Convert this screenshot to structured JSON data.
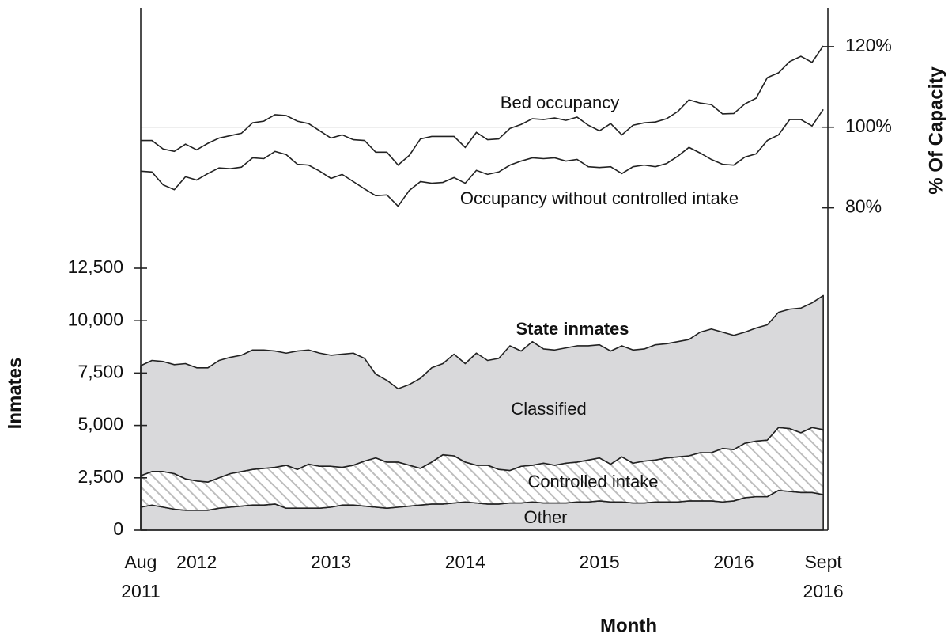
{
  "chart_data": {
    "type": "area",
    "stacked": true,
    "xlabel": "Month",
    "ylabel": "Inmates",
    "y2label": "% Of Capacity",
    "categories": [
      "Aug\n2011",
      null,
      null,
      null,
      null,
      "2012",
      null,
      null,
      null,
      null,
      null,
      null,
      null,
      null,
      null,
      null,
      null,
      "2013",
      null,
      null,
      null,
      null,
      null,
      null,
      null,
      null,
      null,
      null,
      null,
      "2014",
      null,
      null,
      null,
      null,
      null,
      null,
      null,
      null,
      null,
      null,
      null,
      "2015",
      null,
      null,
      null,
      null,
      null,
      null,
      null,
      null,
      null,
      null,
      null,
      "2016",
      null,
      null,
      null,
      null,
      null,
      null,
      null,
      "Sept\n2016"
    ],
    "ylim": [
      0,
      25000
    ],
    "yticks": [
      0,
      {
        "value": 2500,
        "label": "2,500"
      },
      {
        "value": 5000,
        "label": "5,000"
      },
      {
        "value": 7500,
        "label": "7,500"
      },
      {
        "value": 10000,
        "label": "10,000"
      },
      {
        "value": 12500,
        "label": "12,500"
      }
    ],
    "y2lim": [
      0,
      130
    ],
    "y2ticks": [
      {
        "value": 80,
        "label": "80%"
      },
      {
        "value": 100,
        "label": "100%"
      },
      {
        "value": 120,
        "label": "120%"
      }
    ],
    "y2_reference": 100,
    "series": [
      {
        "name": "Other",
        "color": "#d9d9db",
        "values": [
          1100,
          1200,
          1100,
          1000,
          950,
          950,
          950,
          1050,
          1100,
          1150,
          1200,
          1200,
          1250,
          1050,
          1050,
          1050,
          1050,
          1100,
          1200,
          1200,
          1150,
          1100,
          1050,
          1100,
          1150,
          1200,
          1250,
          1250,
          1300,
          1350,
          1300,
          1250,
          1250,
          1300,
          1300,
          1350,
          1300,
          1300,
          1300,
          1350,
          1350,
          1400,
          1350,
          1350,
          1300,
          1300,
          1350,
          1350,
          1350,
          1400,
          1400,
          1400,
          1350,
          1400,
          1550,
          1600,
          1600,
          1900,
          1850,
          1800,
          1800,
          1700
        ]
      },
      {
        "name": "Controlled intake",
        "color": "#bdbdbd",
        "hatch": true,
        "values": [
          1500,
          1600,
          1700,
          1700,
          1500,
          1400,
          1350,
          1450,
          1600,
          1650,
          1700,
          1750,
          1750,
          2050,
          1850,
          2100,
          2000,
          1950,
          1800,
          1900,
          2150,
          2350,
          2200,
          2150,
          1950,
          1750,
          2000,
          2350,
          2250,
          1900,
          1800,
          1850,
          1650,
          1550,
          1750,
          1750,
          1900,
          1800,
          1900,
          1900,
          2000,
          2050,
          1800,
          2150,
          1900,
          2000,
          2000,
          2100,
          2150,
          2150,
          2300,
          2300,
          2550,
          2450,
          2600,
          2650,
          2700,
          3000,
          3000,
          2850,
          3100,
          3100
        ]
      },
      {
        "name": "Classified",
        "color": "#d9d9db",
        "values": [
          5250,
          5300,
          5250,
          5200,
          5500,
          5400,
          5450,
          5600,
          5550,
          5550,
          5700,
          5650,
          5550,
          5350,
          5650,
          5450,
          5400,
          5300,
          5400,
          5350,
          4900,
          4000,
          3900,
          3500,
          3850,
          4300,
          4500,
          4350,
          4850,
          4700,
          5350,
          5000,
          5300,
          5950,
          5500,
          5900,
          5450,
          5500,
          5500,
          5550,
          5450,
          5400,
          5400,
          5300,
          5400,
          5350,
          5500,
          5450,
          5500,
          5550,
          5750,
          5900,
          5550,
          5450,
          5300,
          5400,
          5500,
          5500,
          5700,
          5950,
          5950,
          6400
        ]
      },
      {
        "name": "Bed occupancy",
        "type": "line",
        "axis": "y2",
        "color": "#222222",
        "values": [
          96.7,
          96.7,
          94.6,
          94.0,
          95.8,
          94.4,
          96.0,
          97.3,
          97.9,
          98.5,
          101.1,
          101.5,
          103.1,
          102.9,
          101.5,
          100.9,
          99.1,
          97.3,
          98.1,
          96.9,
          96.7,
          93.8,
          93.8,
          90.6,
          93.0,
          97.1,
          97.7,
          97.7,
          97.7,
          95.0,
          98.7,
          96.9,
          97.1,
          99.7,
          100.7,
          102.1,
          101.9,
          102.3,
          101.7,
          102.5,
          100.5,
          99.1,
          100.9,
          98.1,
          100.5,
          101.1,
          101.3,
          102.1,
          103.9,
          106.8,
          106.0,
          105.6,
          103.3,
          103.4,
          105.8,
          107.2,
          112.3,
          113.5,
          116.3,
          117.6,
          116.1,
          120.2
        ]
      },
      {
        "name": "Occupancy without controlled intake",
        "type": "line",
        "axis": "y2",
        "color": "#222222",
        "values": [
          89.1,
          88.9,
          85.7,
          84.5,
          87.7,
          86.9,
          88.5,
          89.9,
          89.7,
          90.1,
          92.4,
          92.2,
          94.0,
          93.2,
          90.8,
          90.6,
          89.1,
          87.3,
          88.3,
          86.5,
          84.7,
          83.0,
          83.2,
          80.4,
          84.3,
          86.5,
          86.1,
          86.3,
          87.5,
          86.1,
          89.3,
          88.3,
          88.9,
          90.6,
          91.6,
          92.4,
          92.2,
          92.4,
          91.6,
          92.0,
          90.2,
          90.0,
          90.2,
          88.5,
          90.2,
          90.6,
          90.2,
          91.0,
          92.8,
          95.0,
          93.6,
          92.0,
          90.8,
          90.6,
          92.6,
          93.4,
          96.7,
          98.1,
          101.9,
          101.9,
          100.3,
          104.4
        ]
      }
    ],
    "annotations": [
      {
        "text": "State inmates"
      }
    ]
  }
}
